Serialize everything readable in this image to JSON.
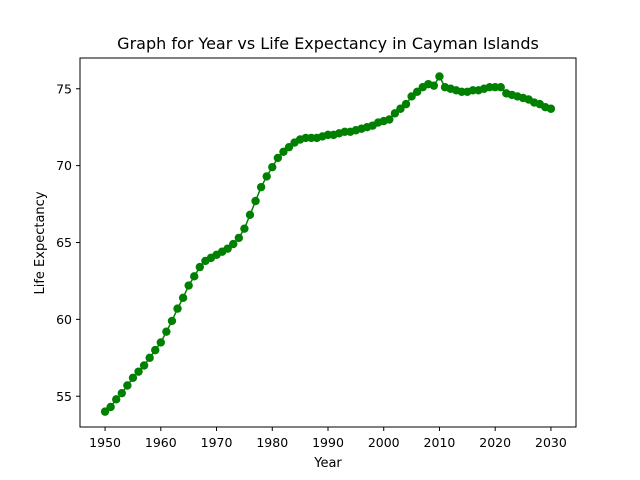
{
  "chart_data": {
    "type": "line",
    "title": "Graph for Year vs Life Expectancy in Cayman Islands",
    "xlabel": "Year",
    "ylabel": "Life Expectancy",
    "xlim": [
      1945.5,
      2034.5
    ],
    "ylim": [
      53.0,
      77.0
    ],
    "xticks": [
      1950,
      1960,
      1970,
      1980,
      1990,
      2000,
      2010,
      2020,
      2030
    ],
    "yticks": [
      55,
      60,
      65,
      70,
      75
    ],
    "grid": false,
    "series": [
      {
        "name": "Life Expectancy",
        "color": "#008000",
        "marker": "circle",
        "x": [
          1950,
          1951,
          1952,
          1953,
          1954,
          1955,
          1956,
          1957,
          1958,
          1959,
          1960,
          1961,
          1962,
          1963,
          1964,
          1965,
          1966,
          1967,
          1968,
          1969,
          1970,
          1971,
          1972,
          1973,
          1974,
          1975,
          1976,
          1977,
          1978,
          1979,
          1980,
          1981,
          1982,
          1983,
          1984,
          1985,
          1986,
          1987,
          1988,
          1989,
          1990,
          1991,
          1992,
          1993,
          1994,
          1995,
          1996,
          1997,
          1998,
          1999,
          2000,
          2001,
          2002,
          2003,
          2004,
          2005,
          2006,
          2007,
          2008,
          2009,
          2010,
          2011,
          2012,
          2013,
          2014,
          2015,
          2016,
          2017,
          2018,
          2019,
          2020,
          2021,
          2022,
          2023,
          2024,
          2025,
          2026,
          2027,
          2028,
          2029,
          2030
        ],
        "y": [
          54.0,
          54.3,
          54.8,
          55.2,
          55.7,
          56.2,
          56.6,
          57.0,
          57.5,
          58.0,
          58.5,
          59.2,
          59.9,
          60.7,
          61.4,
          62.2,
          62.8,
          63.4,
          63.8,
          64.0,
          64.2,
          64.4,
          64.6,
          64.9,
          65.3,
          65.9,
          66.8,
          67.7,
          68.6,
          69.3,
          69.9,
          70.5,
          70.9,
          71.2,
          71.5,
          71.7,
          71.8,
          71.8,
          71.8,
          71.9,
          72.0,
          72.0,
          72.1,
          72.2,
          72.2,
          72.3,
          72.4,
          72.5,
          72.6,
          72.8,
          72.9,
          73.0,
          73.4,
          73.7,
          74.0,
          74.5,
          74.8,
          75.1,
          75.3,
          75.2,
          75.8,
          75.1,
          75.0,
          74.9,
          74.8,
          74.8,
          74.9,
          74.9,
          75.0,
          75.1,
          75.1,
          75.1,
          74.7,
          74.6,
          74.5,
          74.4,
          74.3,
          74.1,
          74.0,
          73.8,
          73.7
        ]
      }
    ]
  }
}
